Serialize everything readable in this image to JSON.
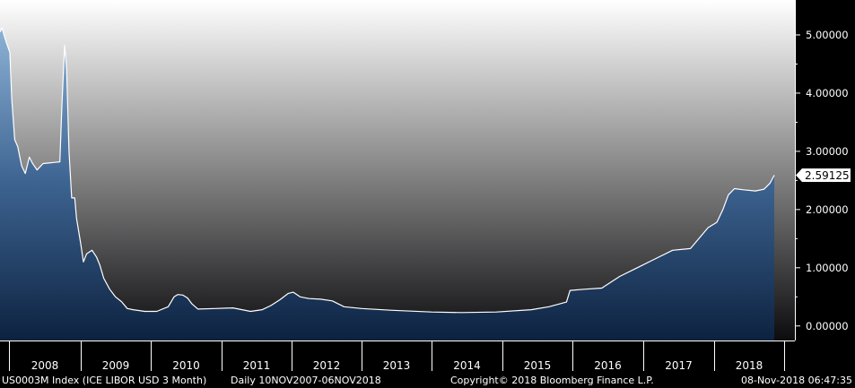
{
  "chart_data": {
    "type": "area",
    "ylim": [
      -0.25,
      5.6
    ],
    "yticks": [
      0.0,
      1.0,
      2.0,
      3.0,
      4.0,
      5.0
    ],
    "ytick_labels": [
      "0.00000",
      "1.00000",
      "2.00000",
      "3.00000",
      "4.00000",
      "5.00000"
    ],
    "x_categories": [
      "2008",
      "2009",
      "2010",
      "2011",
      "2012",
      "2013",
      "2014",
      "2015",
      "2016",
      "2017",
      "2018"
    ],
    "last_value_label": "2.59125",
    "series": [
      {
        "x": [
          "2007-11-10",
          "2007-11-20",
          "2007-12-05",
          "2007-12-15",
          "2007-12-31",
          "2008-01-10",
          "2008-01-25",
          "2008-02-10",
          "2008-03-01",
          "2008-03-20",
          "2008-04-10",
          "2008-04-25",
          "2008-05-20",
          "2008-06-20",
          "2008-07-20",
          "2008-08-20",
          "2008-09-15",
          "2008-09-25",
          "2008-10-01",
          "2008-10-10",
          "2008-10-20",
          "2008-11-01",
          "2008-11-15",
          "2008-12-01",
          "2008-12-10",
          "2008-12-31",
          "2009-01-15",
          "2009-02-01",
          "2009-03-01",
          "2009-03-25",
          "2009-04-10",
          "2009-05-01",
          "2009-06-01",
          "2009-07-01",
          "2009-08-01",
          "2009-09-01",
          "2009-10-01",
          "2009-12-01",
          "2010-02-01",
          "2010-04-01",
          "2010-05-01",
          "2010-05-20",
          "2010-06-15",
          "2010-07-10",
          "2010-08-01",
          "2010-09-01",
          "2010-12-01",
          "2011-03-01",
          "2011-06-01",
          "2011-08-01",
          "2011-09-15",
          "2011-11-01",
          "2011-12-15",
          "2012-01-10",
          "2012-02-15",
          "2012-04-01",
          "2012-06-01",
          "2012-08-01",
          "2012-10-01",
          "2013-01-01",
          "2013-06-01",
          "2014-01-01",
          "2014-06-01",
          "2014-12-01",
          "2015-06-01",
          "2015-09-01",
          "2015-12-01",
          "2015-12-20",
          "2016-03-01",
          "2016-06-01",
          "2016-09-01",
          "2016-12-01",
          "2017-03-01",
          "2017-06-01",
          "2017-09-01",
          "2017-12-01",
          "2018-01-15",
          "2018-02-15",
          "2018-03-15",
          "2018-04-15",
          "2018-06-01",
          "2018-08-01",
          "2018-09-15",
          "2018-10-15",
          "2018-11-06"
        ],
        "y": [
          5.05,
          5.12,
          4.95,
          4.85,
          4.7,
          3.9,
          3.2,
          3.08,
          2.75,
          2.62,
          2.9,
          2.8,
          2.68,
          2.79,
          2.8,
          2.81,
          2.82,
          3.75,
          4.2,
          4.82,
          4.4,
          3.0,
          2.2,
          2.2,
          1.85,
          1.43,
          1.1,
          1.24,
          1.3,
          1.18,
          1.05,
          0.82,
          0.63,
          0.5,
          0.42,
          0.3,
          0.28,
          0.25,
          0.25,
          0.33,
          0.5,
          0.54,
          0.53,
          0.48,
          0.38,
          0.29,
          0.3,
          0.31,
          0.25,
          0.28,
          0.35,
          0.45,
          0.56,
          0.58,
          0.5,
          0.47,
          0.46,
          0.43,
          0.33,
          0.3,
          0.27,
          0.24,
          0.23,
          0.24,
          0.28,
          0.33,
          0.41,
          0.61,
          0.63,
          0.65,
          0.85,
          1.0,
          1.15,
          1.3,
          1.33,
          1.69,
          1.78,
          2.0,
          2.25,
          2.36,
          2.34,
          2.32,
          2.35,
          2.45,
          2.59
        ]
      }
    ]
  },
  "footer": {
    "ticker": "US0003M Index (ICE LIBOR USD 3 Month)",
    "range": "Daily 10NOV2007-06NOV2018",
    "copyright": "Copyright© 2018 Bloomberg Finance L.P.",
    "timestamp": "08-Nov-2018 06:47:35"
  },
  "colors": {
    "background": "#000000",
    "line": "#ffffff",
    "area_top": "#8db2d6",
    "area_bottom": "#0d2240",
    "grad_top": "#ffffff",
    "grad_bottom": "#0c0c0e"
  }
}
